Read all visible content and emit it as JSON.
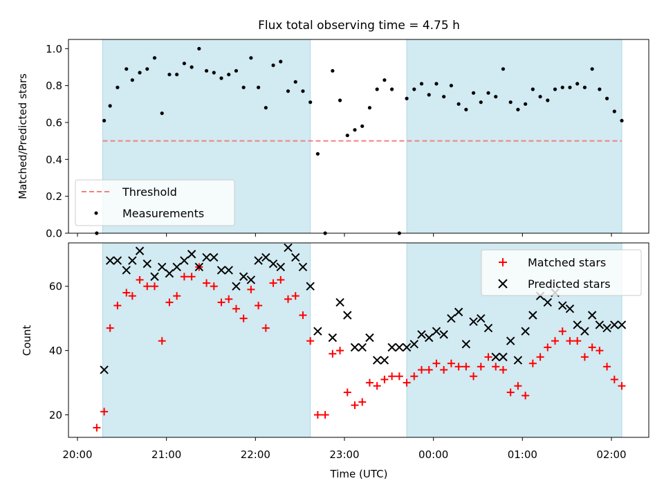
{
  "title": "Flux total observing time = 4.75 h",
  "colors": {
    "shade": "#add8e6",
    "threshold": "#f08080",
    "measurements": "#000000",
    "matched": "#ff0000",
    "predicted": "#000000"
  },
  "chart_data": [
    {
      "type": "scatter",
      "panel": "top",
      "ylabel": "Matched/Predicted stars",
      "ylim": [
        0,
        1.05
      ],
      "yticks": [
        "0.0",
        "0.2",
        "0.4",
        "0.6",
        "0.8",
        "1.0"
      ],
      "shaded_intervals": [
        [
          "20:17",
          "22:37"
        ],
        [
          "23:42",
          "02:07"
        ]
      ],
      "threshold": {
        "name": "Threshold",
        "value": 0.5,
        "x_range": [
          "20:17",
          "02:07"
        ]
      },
      "legend": {
        "position": "lower-left",
        "entries": [
          "Threshold",
          "Measurements"
        ]
      },
      "series": [
        {
          "name": "Measurements",
          "marker": "dot",
          "x": [
            "20:13",
            "20:18",
            "20:22",
            "20:27",
            "20:33",
            "20:37",
            "20:42",
            "20:47",
            "20:52",
            "20:57",
            "21:02",
            "21:07",
            "21:12",
            "21:17",
            "21:22",
            "21:27",
            "21:32",
            "21:37",
            "21:42",
            "21:47",
            "21:52",
            "21:57",
            "22:02",
            "22:07",
            "22:12",
            "22:17",
            "22:22",
            "22:27",
            "22:32",
            "22:37",
            "22:42",
            "22:47",
            "22:52",
            "22:57",
            "23:02",
            "23:07",
            "23:12",
            "23:17",
            "23:22",
            "23:27",
            "23:32",
            "23:37",
            "23:42",
            "23:47",
            "23:52",
            "23:57",
            "00:02",
            "00:07",
            "00:12",
            "00:17",
            "00:22",
            "00:27",
            "00:32",
            "00:37",
            "00:42",
            "00:47",
            "00:52",
            "00:57",
            "01:02",
            "01:07",
            "01:12",
            "01:17",
            "01:22",
            "01:27",
            "01:32",
            "01:37",
            "01:42",
            "01:47",
            "01:52",
            "01:57",
            "02:02",
            "02:07"
          ],
          "y": [
            0.0,
            0.61,
            0.69,
            0.79,
            0.89,
            0.83,
            0.87,
            0.89,
            0.95,
            0.65,
            0.86,
            0.86,
            0.92,
            0.9,
            1.0,
            0.88,
            0.87,
            0.84,
            0.86,
            0.88,
            0.79,
            0.95,
            0.79,
            0.68,
            0.91,
            0.93,
            0.77,
            0.82,
            0.77,
            0.71,
            0.43,
            0.0,
            0.88,
            0.72,
            0.53,
            0.56,
            0.58,
            0.68,
            0.78,
            0.83,
            0.78,
            0.0,
            0.73,
            0.78,
            0.81,
            0.75,
            0.81,
            0.74,
            0.8,
            0.7,
            0.67,
            0.76,
            0.71,
            0.76,
            0.74,
            0.89,
            0.71,
            0.67,
            0.7,
            0.78,
            0.74,
            0.72,
            0.78,
            0.79,
            0.79,
            0.81,
            0.79,
            0.89,
            0.78,
            0.73,
            0.66,
            0.61
          ]
        }
      ]
    },
    {
      "type": "scatter",
      "panel": "bottom",
      "xlabel": "Time (UTC)",
      "ylabel": "Count",
      "ylim": [
        13,
        73.5
      ],
      "yticks": [
        "20",
        "40",
        "60"
      ],
      "xticks": [
        "20:00",
        "21:00",
        "22:00",
        "23:00",
        "00:00",
        "01:00",
        "02:00"
      ],
      "shaded_intervals": [
        [
          "20:17",
          "22:37"
        ],
        [
          "23:42",
          "02:07"
        ]
      ],
      "legend": {
        "position": "upper-right",
        "entries": [
          "Matched stars",
          "Predicted stars"
        ]
      },
      "series": [
        {
          "name": "Matched stars",
          "marker": "plus",
          "x": [
            "20:13",
            "20:18",
            "20:22",
            "20:27",
            "20:33",
            "20:37",
            "20:42",
            "20:47",
            "20:52",
            "20:57",
            "21:02",
            "21:07",
            "21:12",
            "21:17",
            "21:22",
            "21:27",
            "21:32",
            "21:37",
            "21:42",
            "21:47",
            "21:52",
            "21:57",
            "22:02",
            "22:07",
            "22:12",
            "22:17",
            "22:22",
            "22:27",
            "22:32",
            "22:37",
            "22:42",
            "22:47",
            "22:52",
            "22:57",
            "23:02",
            "23:07",
            "23:12",
            "23:17",
            "23:22",
            "23:27",
            "23:32",
            "23:37",
            "23:42",
            "23:47",
            "23:52",
            "23:57",
            "00:02",
            "00:07",
            "00:12",
            "00:17",
            "00:22",
            "00:27",
            "00:32",
            "00:37",
            "00:42",
            "00:47",
            "00:52",
            "00:57",
            "01:02",
            "01:07",
            "01:12",
            "01:17",
            "01:22",
            "01:27",
            "01:32",
            "01:37",
            "01:42",
            "01:47",
            "01:52",
            "01:57",
            "02:02",
            "02:07"
          ],
          "y": [
            16,
            21,
            47,
            54,
            58,
            57,
            62,
            60,
            60,
            43,
            55,
            57,
            63,
            63,
            66,
            61,
            60,
            55,
            56,
            53,
            50,
            59,
            54,
            47,
            61,
            62,
            56,
            57,
            51,
            43,
            20,
            20,
            39,
            40,
            27,
            23,
            24,
            30,
            29,
            31,
            32,
            32,
            30,
            32,
            34,
            34,
            36,
            34,
            36,
            35,
            35,
            32,
            35,
            38,
            35,
            34,
            27,
            29,
            26,
            36,
            38,
            41,
            43,
            46,
            43,
            43,
            38,
            41,
            40,
            35,
            31,
            29
          ]
        },
        {
          "name": "Predicted stars",
          "marker": "x",
          "x": [
            "20:18",
            "20:22",
            "20:27",
            "20:33",
            "20:37",
            "20:42",
            "20:47",
            "20:52",
            "20:57",
            "21:02",
            "21:07",
            "21:12",
            "21:17",
            "21:22",
            "21:27",
            "21:32",
            "21:37",
            "21:42",
            "21:47",
            "21:52",
            "21:57",
            "22:02",
            "22:07",
            "22:12",
            "22:17",
            "22:22",
            "22:27",
            "22:32",
            "22:37",
            "22:42",
            "22:52",
            "22:57",
            "23:02",
            "23:07",
            "23:12",
            "23:17",
            "23:22",
            "23:27",
            "23:32",
            "23:37",
            "23:42",
            "23:47",
            "23:52",
            "23:57",
            "00:02",
            "00:07",
            "00:12",
            "00:17",
            "00:22",
            "00:27",
            "00:32",
            "00:37",
            "00:42",
            "00:47",
            "00:52",
            "00:57",
            "01:02",
            "01:07",
            "01:12",
            "01:17",
            "01:22",
            "01:27",
            "01:32",
            "01:37",
            "01:42",
            "01:47",
            "01:52",
            "01:57",
            "02:02",
            "02:07"
          ],
          "y": [
            34,
            68,
            68,
            65,
            68,
            71,
            67,
            63,
            66,
            64,
            66,
            68,
            70,
            66,
            69,
            69,
            65,
            65,
            60,
            63,
            62,
            68,
            69,
            67,
            66,
            72,
            69,
            66,
            60,
            46,
            44,
            55,
            51,
            41,
            41,
            44,
            37,
            37,
            41,
            41,
            41,
            42,
            45,
            44,
            46,
            45,
            50,
            52,
            42,
            49,
            50,
            47,
            38,
            38,
            43,
            37,
            46,
            51,
            57,
            55,
            58,
            54,
            53,
            48,
            46,
            51,
            48,
            47,
            48,
            48
          ]
        }
      ]
    }
  ]
}
